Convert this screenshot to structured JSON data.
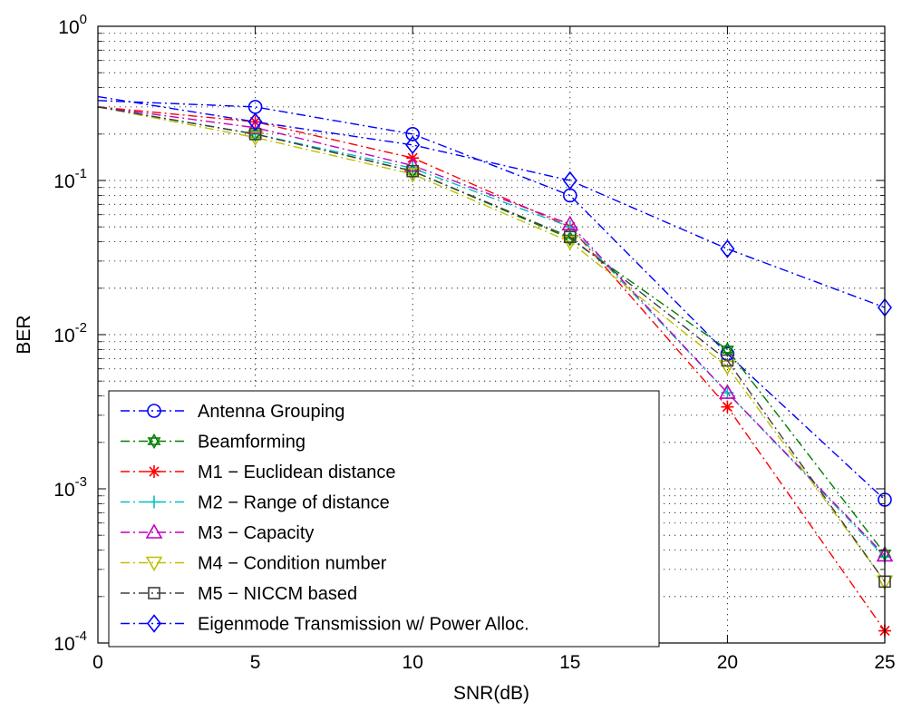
{
  "chart_data": {
    "type": "line",
    "title": "",
    "xlabel": "SNR(dB)",
    "ylabel": "BER",
    "x_scale": "linear",
    "y_scale": "log",
    "xlim": [
      0,
      25
    ],
    "ylim": [
      0.0001,
      1
    ],
    "x_ticks": [
      0,
      5,
      10,
      15,
      20,
      25
    ],
    "y_ticks": [
      {
        "value": 1,
        "base": "10",
        "exp": "0"
      },
      {
        "value": 0.1,
        "base": "10",
        "exp": "-1"
      },
      {
        "value": 0.01,
        "base": "10",
        "exp": "-2"
      },
      {
        "value": 0.001,
        "base": "10",
        "exp": "-3"
      },
      {
        "value": 0.0001,
        "base": "10",
        "exp": "-4"
      }
    ],
    "grid": true,
    "legend_position": "bottom-left",
    "x": [
      0,
      5,
      10,
      15,
      20,
      25
    ],
    "series": [
      {
        "name": "Antenna Grouping",
        "color": "#0000ff",
        "dash": "dashdot",
        "marker": "circle",
        "values": [
          0.33,
          0.3,
          0.2,
          0.08,
          0.0075,
          0.00085
        ]
      },
      {
        "name": "Beamforming",
        "color": "#007f00",
        "dash": "dashdot",
        "marker": "hexagram",
        "values": [
          0.3,
          0.2,
          0.115,
          0.042,
          0.008,
          0.00038
        ]
      },
      {
        "name": "M1 − Euclidean distance",
        "color": "#ff0000",
        "dash": "dashdot",
        "marker": "asterisk",
        "values": [
          0.3,
          0.24,
          0.14,
          0.05,
          0.0034,
          0.00012
        ]
      },
      {
        "name": "M2 − Range of distance",
        "color": "#00bfbf",
        "dash": "dashdot",
        "marker": "plus",
        "values": [
          0.3,
          0.2,
          0.12,
          0.05,
          0.0042,
          0.00036
        ]
      },
      {
        "name": "M3 − Capacity",
        "color": "#bf00bf",
        "dash": "dashdot",
        "marker": "triangle-up",
        "values": [
          0.3,
          0.22,
          0.125,
          0.052,
          0.0042,
          0.00037
        ]
      },
      {
        "name": "M4 − Condition number",
        "color": "#bfbf00",
        "dash": "dashdot",
        "marker": "triangle-down",
        "values": [
          0.3,
          0.19,
          0.11,
          0.04,
          0.0062,
          0.00025
        ]
      },
      {
        "name": "M5 − NICCM based",
        "color": "#3f3f3f",
        "dash": "dashdot",
        "marker": "square",
        "values": [
          0.3,
          0.2,
          0.115,
          0.043,
          0.0068,
          0.00025
        ]
      },
      {
        "name": "Eigenmode Transmission w/ Power Alloc.",
        "color": "#0000ff",
        "dash": "dashdot",
        "marker": "diamond",
        "values": [
          0.35,
          0.24,
          0.17,
          0.1,
          0.036,
          0.015
        ]
      }
    ]
  }
}
